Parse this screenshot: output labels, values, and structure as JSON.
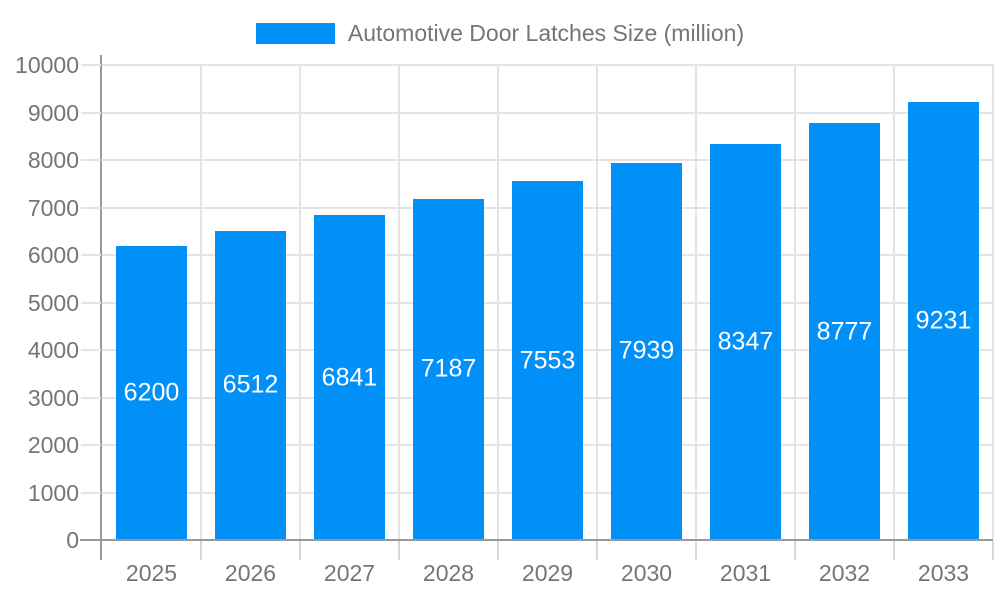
{
  "legend": {
    "label": "Automotive Door Latches Size (million)"
  },
  "chart_data": {
    "type": "bar",
    "title": "Automotive Door Latches Size (million)",
    "series_name": "Automotive Door Latches Size (million)",
    "categories": [
      "2025",
      "2026",
      "2027",
      "2028",
      "2029",
      "2030",
      "2031",
      "2032",
      "2033"
    ],
    "values": [
      6200,
      6512,
      6841,
      7187,
      7553,
      7939,
      8347,
      8777,
      9231
    ],
    "xlabel": "",
    "ylabel": "",
    "ylim": [
      0,
      10000
    ],
    "yticks": [
      0,
      1000,
      2000,
      3000,
      4000,
      5000,
      6000,
      7000,
      8000,
      9000,
      10000
    ],
    "grid": true,
    "legend_position": "top-center",
    "bar_labels_visible": true,
    "colors": {
      "bar": "#0190F8",
      "grid": "#E4E4E4",
      "tick": "#D8D8D8",
      "axis": "#999999",
      "text": "#757575",
      "bar_label": "#FFFFFF",
      "background": "#FFFFFF"
    }
  }
}
